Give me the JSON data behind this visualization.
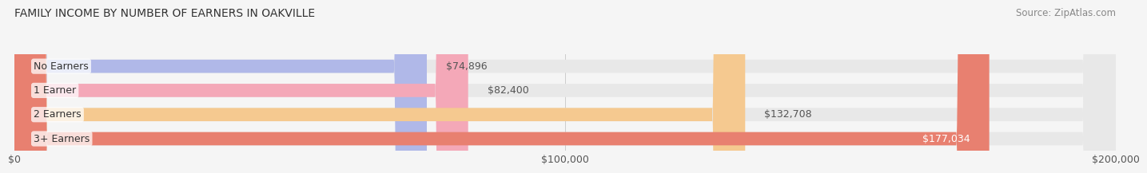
{
  "title": "FAMILY INCOME BY NUMBER OF EARNERS IN OAKVILLE",
  "source": "Source: ZipAtlas.com",
  "categories": [
    "No Earners",
    "1 Earner",
    "2 Earners",
    "3+ Earners"
  ],
  "values": [
    74896,
    82400,
    132708,
    177034
  ],
  "bar_colors": [
    "#b0b8e8",
    "#f4a8b8",
    "#f5c990",
    "#e88070"
  ],
  "bar_bg_color": "#e8e8e8",
  "value_label_colors": [
    "#555555",
    "#555555",
    "#ffffff",
    "#ffffff"
  ],
  "max_value": 200000,
  "x_ticks": [
    0,
    100000,
    200000
  ],
  "x_tick_labels": [
    "$0",
    "$100,000",
    "$200,000"
  ],
  "background_color": "#f5f5f5",
  "bar_height": 0.55,
  "label_fontsize": 9,
  "title_fontsize": 10,
  "source_fontsize": 8.5
}
